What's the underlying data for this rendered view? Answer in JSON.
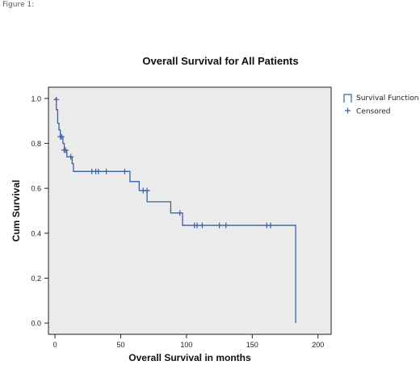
{
  "figure_label": "Figure 1:",
  "colors": {
    "curve": "#3d5fa5",
    "plot_bg": "#ebebeb",
    "axis": "#222222"
  },
  "chart_data": {
    "type": "line",
    "title": "Overall Survival for All Patients",
    "xlabel": "Overall Survival in months",
    "ylabel": "Cum Survival",
    "xlim": [
      -5,
      210
    ],
    "ylim": [
      -0.05,
      1.05
    ],
    "xticks": [
      0,
      50,
      100,
      150,
      200
    ],
    "yticks": [
      0.0,
      0.2,
      0.4,
      0.6,
      0.8,
      1.0
    ],
    "ytick_labels": [
      "0.0",
      "0.2",
      "0.4",
      "0.6",
      "0.8",
      "1.0"
    ],
    "grid": false,
    "legend_position": "right",
    "legend": [
      {
        "label": "Survival Function",
        "marker": "step-line"
      },
      {
        "label": "Censored",
        "marker": "plus"
      }
    ],
    "series": [
      {
        "name": "Survival Function",
        "step": true,
        "points": [
          [
            0,
            1.0
          ],
          [
            1,
            0.95
          ],
          [
            2,
            0.89
          ],
          [
            3,
            0.86
          ],
          [
            4,
            0.83
          ],
          [
            6,
            0.8
          ],
          [
            7,
            0.77
          ],
          [
            9,
            0.74
          ],
          [
            13,
            0.71
          ],
          [
            14,
            0.675
          ],
          [
            57,
            0.63
          ],
          [
            64,
            0.59
          ],
          [
            70,
            0.54
          ],
          [
            88,
            0.49
          ],
          [
            97,
            0.435
          ],
          [
            183,
            0.435
          ],
          [
            183,
            0.0
          ]
        ]
      },
      {
        "name": "Censored",
        "points": [
          [
            1,
            0.995
          ],
          [
            4,
            0.83
          ],
          [
            5,
            0.83
          ],
          [
            7,
            0.77
          ],
          [
            8,
            0.77
          ],
          [
            12,
            0.74
          ],
          [
            28,
            0.675
          ],
          [
            31,
            0.675
          ],
          [
            33,
            0.675
          ],
          [
            39,
            0.675
          ],
          [
            53,
            0.675
          ],
          [
            67,
            0.59
          ],
          [
            70,
            0.59
          ],
          [
            95,
            0.49
          ],
          [
            106,
            0.435
          ],
          [
            108,
            0.435
          ],
          [
            112,
            0.435
          ],
          [
            125,
            0.435
          ],
          [
            130,
            0.435
          ],
          [
            161,
            0.435
          ],
          [
            164,
            0.435
          ]
        ]
      }
    ]
  }
}
